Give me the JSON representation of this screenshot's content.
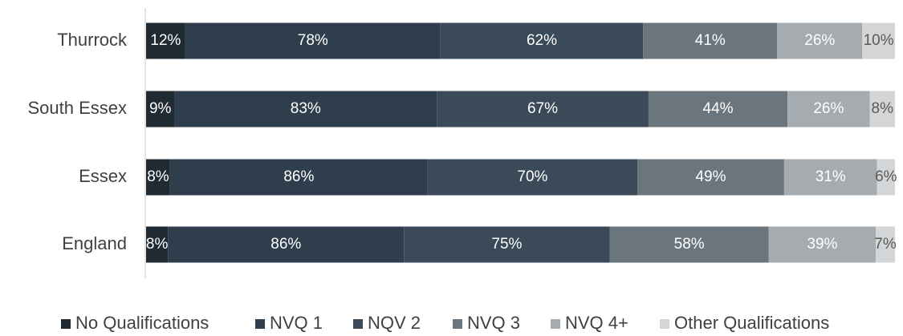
{
  "chart_data": {
    "type": "stacked-bar-horizontal",
    "categories": [
      "Thurrock",
      "South Essex",
      "Essex",
      "England"
    ],
    "series": [
      {
        "name": "No Qualifications",
        "color": "#1f2a33",
        "values": [
          12,
          9,
          8,
          8
        ]
      },
      {
        "name": "NVQ 1",
        "color": "#2f3e4c",
        "values": [
          78,
          83,
          86,
          86
        ]
      },
      {
        "name": "NQV 2",
        "color": "#3a4a58",
        "values": [
          62,
          67,
          70,
          75
        ]
      },
      {
        "name": "NVQ 3",
        "color": "#6b757e",
        "values": [
          41,
          44,
          49,
          58
        ]
      },
      {
        "name": "NVQ 4+",
        "color": "#a6abb0",
        "values": [
          26,
          26,
          31,
          39
        ]
      },
      {
        "name": "Other Qualifications",
        "color": "#d3d5d7",
        "values": [
          10,
          8,
          6,
          7
        ]
      }
    ],
    "value_labels": [
      [
        "12%",
        "9%",
        "8%",
        "8%"
      ],
      [
        "78%",
        "83%",
        "86%",
        "86%"
      ],
      [
        "62%",
        "67%",
        "70%",
        "75%"
      ],
      [
        "41%",
        "44%",
        "49%",
        "58%"
      ],
      [
        "26%",
        "26%",
        "31%",
        "39%"
      ],
      [
        "10%",
        "8%",
        "6%",
        "7%"
      ]
    ],
    "legend": "bottom"
  }
}
